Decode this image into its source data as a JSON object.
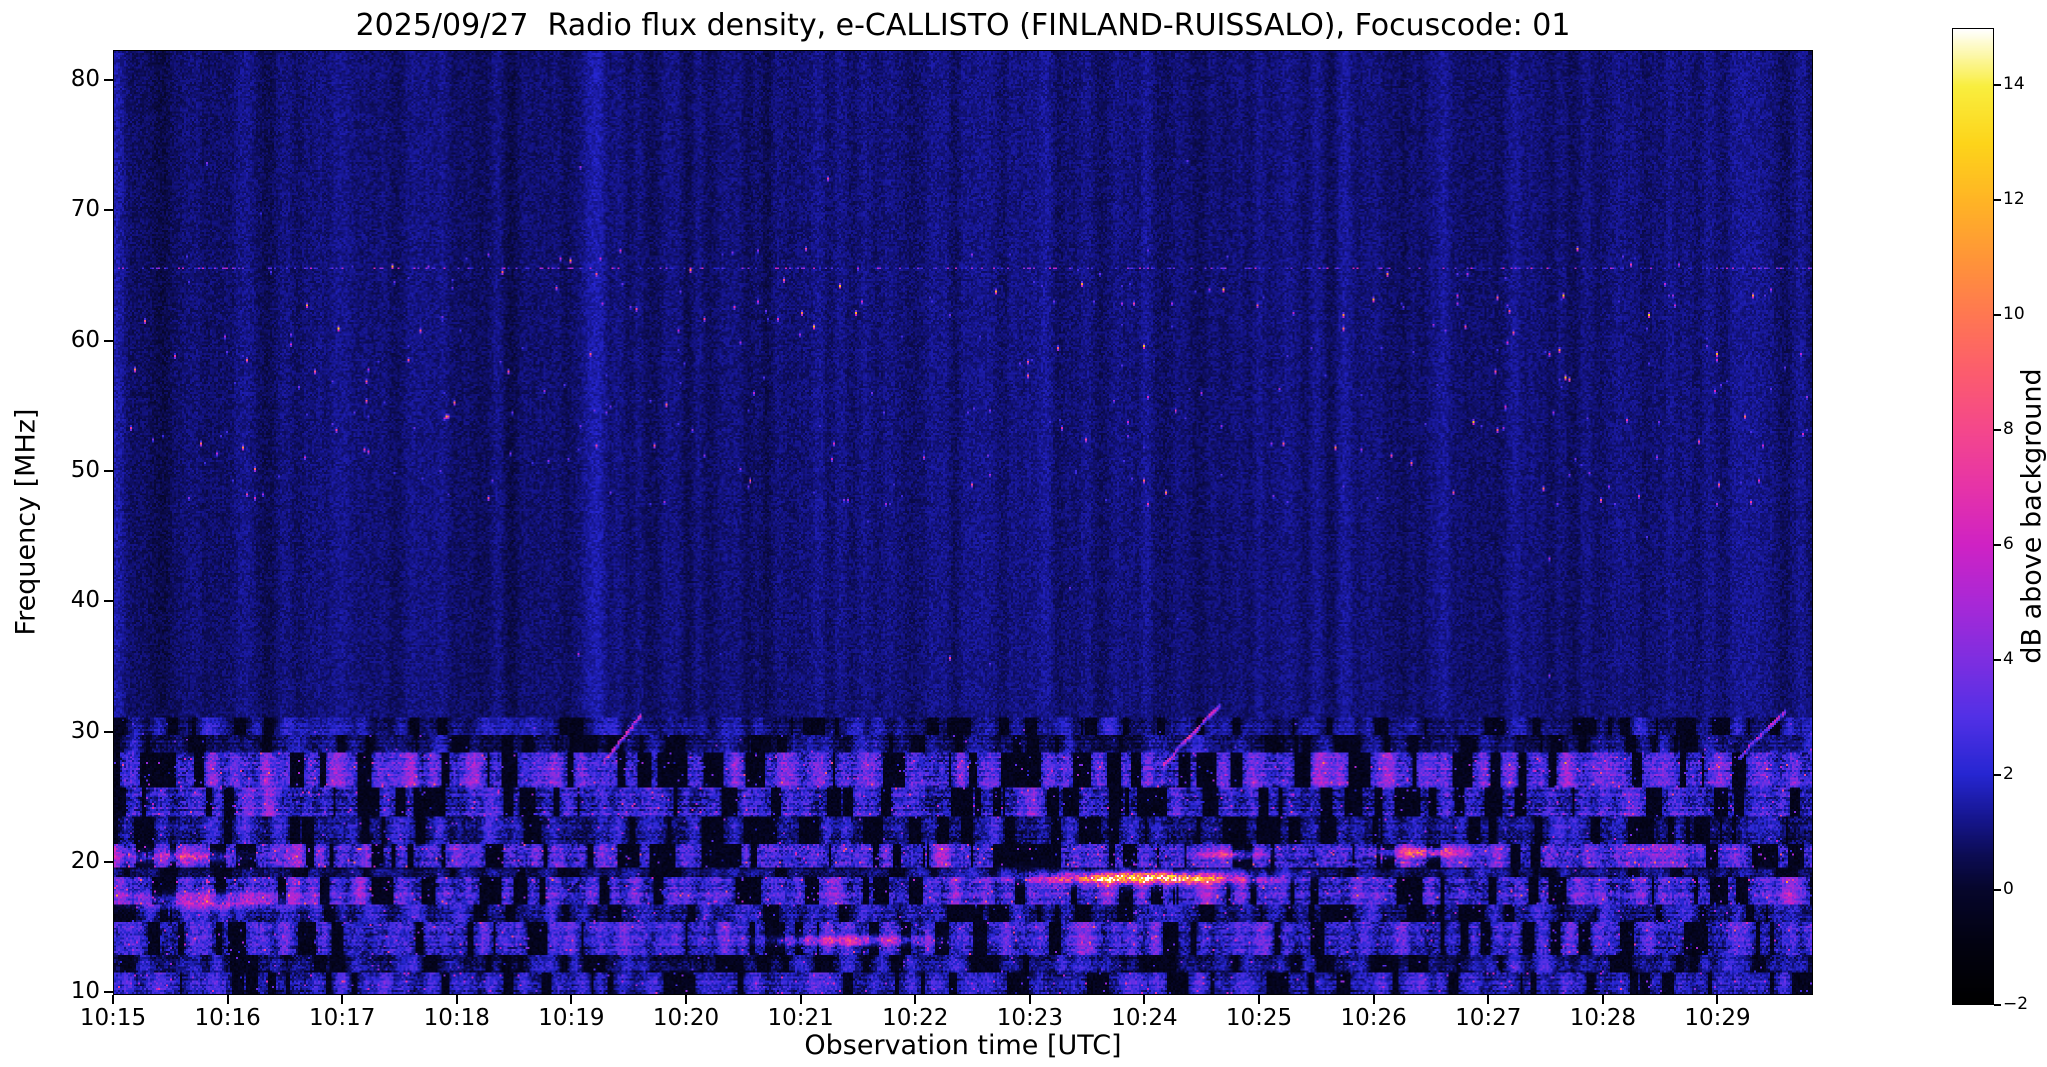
{
  "chart_data": {
    "type": "heatmap",
    "title": "2025/09/27  Radio flux density, e-CALLISTO (FINLAND-RUISSALO), Focuscode: 01",
    "xlabel": "Observation time [UTC]",
    "ylabel": "Frequency [MHz]",
    "colorbar_label": "dB above background",
    "x_range_seconds": [
      0,
      890
    ],
    "x_ticks": [
      {
        "s": 0,
        "label": "10:15"
      },
      {
        "s": 60,
        "label": "10:16"
      },
      {
        "s": 120,
        "label": "10:17"
      },
      {
        "s": 180,
        "label": "10:18"
      },
      {
        "s": 240,
        "label": "10:19"
      },
      {
        "s": 300,
        "label": "10:20"
      },
      {
        "s": 360,
        "label": "10:21"
      },
      {
        "s": 420,
        "label": "10:22"
      },
      {
        "s": 480,
        "label": "10:23"
      },
      {
        "s": 540,
        "label": "10:24"
      },
      {
        "s": 600,
        "label": "10:25"
      },
      {
        "s": 660,
        "label": "10:26"
      },
      {
        "s": 720,
        "label": "10:27"
      },
      {
        "s": 780,
        "label": "10:28"
      },
      {
        "s": 840,
        "label": "10:29"
      }
    ],
    "ylim": [
      9.8,
      82.3
    ],
    "y_ticks": [
      {
        "f": 10,
        "label": "10"
      },
      {
        "f": 20,
        "label": "20"
      },
      {
        "f": 30,
        "label": "30"
      },
      {
        "f": 40,
        "label": "40"
      },
      {
        "f": 50,
        "label": "50"
      },
      {
        "f": 60,
        "label": "60"
      },
      {
        "f": 70,
        "label": "70"
      },
      {
        "f": 80,
        "label": "80"
      }
    ],
    "grid": false,
    "colorbar": {
      "min": -2,
      "max": 15,
      "ticks": [
        {
          "v": -2,
          "label": "−2"
        },
        {
          "v": 0,
          "label": "0"
        },
        {
          "v": 2,
          "label": "2"
        },
        {
          "v": 4,
          "label": "4"
        },
        {
          "v": 6,
          "label": "6"
        },
        {
          "v": 8,
          "label": "8"
        },
        {
          "v": 10,
          "label": "10"
        },
        {
          "v": 12,
          "label": "12"
        },
        {
          "v": 14,
          "label": "14"
        }
      ],
      "colormap_stops": [
        [
          -2,
          "#000000"
        ],
        [
          -1,
          "#020210"
        ],
        [
          0,
          "#06062c"
        ],
        [
          0.6,
          "#0c0c55"
        ],
        [
          1.2,
          "#15158c"
        ],
        [
          2,
          "#2626d2"
        ],
        [
          3,
          "#5230e6"
        ],
        [
          4,
          "#7e2ee0"
        ],
        [
          5,
          "#a928d6"
        ],
        [
          6,
          "#cf22c4"
        ],
        [
          7,
          "#e633a8"
        ],
        [
          8,
          "#f4478c"
        ],
        [
          9,
          "#fc5c6e"
        ],
        [
          10,
          "#ff7752"
        ],
        [
          11,
          "#ff9538"
        ],
        [
          12,
          "#ffb425"
        ],
        [
          13,
          "#fdd41a"
        ],
        [
          14,
          "#f9ee3e"
        ],
        [
          15,
          "#ffffff"
        ]
      ]
    },
    "background_db": {
      "base": 0.95,
      "noise": 0.45,
      "column_mod": 0.3
    },
    "bands": [
      {
        "f": [
          9.8,
          11.4
        ],
        "base": 1.6,
        "col_var": 0.8,
        "cell_var": 0.9,
        "row_amp": 0.5,
        "gap": -0.75,
        "speckle_p": 0.02,
        "speckle_db": 2.5
      },
      {
        "f": [
          11.4,
          12.7
        ],
        "base": 0.7,
        "col_var": 0.9,
        "cell_var": 0.8,
        "row_amp": 0.5,
        "gap": -0.6,
        "speckle_p": 0.01,
        "speckle_db": 2.0
      },
      {
        "f": [
          12.7,
          15.3
        ],
        "base": 1.7,
        "col_var": 1.0,
        "cell_var": 1.1,
        "row_amp": 0.6,
        "gap": -0.65,
        "speckle_p": 0.02,
        "speckle_db": 2.5
      },
      {
        "f": [
          15.3,
          16.6
        ],
        "base": 1.0,
        "col_var": 0.9,
        "cell_var": 0.9,
        "row_amp": 0.5,
        "gap": -0.6,
        "speckle_p": 0.015,
        "speckle_db": 2.2
      },
      {
        "f": [
          16.6,
          18.8
        ],
        "base": 2.1,
        "col_var": 1.2,
        "cell_var": 1.2,
        "row_amp": 0.7,
        "gap": -0.6,
        "speckle_p": 0.025,
        "speckle_db": 3.0
      },
      {
        "f": [
          18.8,
          19.5
        ],
        "base": 0.4,
        "col_var": 0.6,
        "cell_var": 0.7,
        "row_amp": 0.4,
        "gap": -0.7,
        "speckle_p": 0.008,
        "speckle_db": 2.0
      },
      {
        "f": [
          19.5,
          21.3
        ],
        "base": 2.2,
        "col_var": 1.2,
        "cell_var": 1.3,
        "row_amp": 0.7,
        "gap": -0.55,
        "speckle_p": 0.025,
        "speckle_db": 3.0
      },
      {
        "f": [
          21.3,
          23.4
        ],
        "base": 0.9,
        "col_var": 0.9,
        "cell_var": 0.9,
        "row_amp": 0.6,
        "gap": -0.55,
        "speckle_p": 0.012,
        "speckle_db": 2.2
      },
      {
        "f": [
          23.4,
          25.7
        ],
        "base": 1.8,
        "col_var": 1.0,
        "cell_var": 1.1,
        "row_amp": 0.7,
        "gap": -0.6,
        "speckle_p": 0.018,
        "speckle_db": 2.5
      },
      {
        "f": [
          25.7,
          28.3
        ],
        "base": 2.2,
        "col_var": 1.3,
        "cell_var": 1.2,
        "row_amp": 0.7,
        "gap": -0.5,
        "speckle_p": 0.02,
        "speckle_db": 2.8
      },
      {
        "f": [
          28.3,
          29.7
        ],
        "base": 0.6,
        "col_var": 0.7,
        "cell_var": 0.7,
        "row_amp": 0.4,
        "gap": -0.65,
        "speckle_p": 0.006,
        "speckle_db": 2.0
      },
      {
        "f": [
          29.7,
          31.1
        ],
        "base": 0.9,
        "col_var": 0.6,
        "cell_var": 0.6,
        "row_amp": 0.3,
        "gap": -0.8,
        "speckle_p": 0.004,
        "speckle_db": 1.5
      }
    ],
    "features": {
      "streaks": [
        {
          "t": 540,
          "f": 18.6,
          "rt": 62,
          "rf": 0.55,
          "db": 9.5
        },
        {
          "t": 540,
          "f": 18.6,
          "rt": 95,
          "rf": 1.0,
          "db": 3.5
        },
        {
          "t": 387,
          "f": 13.9,
          "rt": 58,
          "rf": 0.55,
          "db": 4.6
        },
        {
          "t": 50,
          "f": 16.9,
          "rt": 60,
          "rf": 0.9,
          "db": 3.4
        },
        {
          "t": 30,
          "f": 20.3,
          "rt": 50,
          "rf": 0.7,
          "db": 3.0
        },
        {
          "t": 686,
          "f": 20.6,
          "rt": 30,
          "rf": 0.5,
          "db": 6.0
        },
        {
          "t": 585,
          "f": 20.5,
          "rt": 28,
          "rf": 0.45,
          "db": 4.5
        }
      ],
      "diagonals": [
        {
          "t": [
            256,
            276
          ],
          "f": [
            27.5,
            31.2
          ],
          "db": 5.0
        },
        {
          "t": [
            550,
            580
          ],
          "f": [
            27.4,
            32.0
          ],
          "db": 5.5
        },
        {
          "t": [
            852,
            876
          ],
          "f": [
            27.9,
            31.5
          ],
          "db": 4.5
        }
      ],
      "dots": [
        {
          "t": 48,
          "f": 73.8,
          "db": 4.0
        },
        {
          "t": 244,
          "f": 73.4,
          "db": 4.5
        }
      ],
      "speckle_field": {
        "f_range": [
          47.5,
          67.2
        ],
        "density": 0.003,
        "db_range": [
          2.5,
          13
        ]
      },
      "sparse_speckles": {
        "f_range": [
          31.5,
          76.0
        ],
        "density": 0.00012,
        "db_range": [
          2,
          9
        ]
      },
      "dotted_line": {
        "f": 65.7,
        "density": 0.32,
        "db_range": [
          1.8,
          6.5
        ]
      }
    }
  }
}
